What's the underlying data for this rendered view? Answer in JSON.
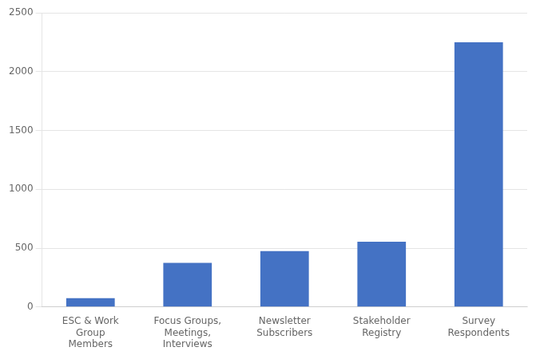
{
  "chart_data": {
    "type": "bar",
    "categories": [
      "ESC & Work\nGroup\nMembers",
      "Focus Groups,\nMeetings,\nInterviews",
      "Newsletter\nSubscribers",
      "Stakeholder\nRegistry",
      "Survey\nRespondents"
    ],
    "values": [
      75,
      375,
      475,
      555,
      2250
    ],
    "color": "#4472C4",
    "ylim": [
      0,
      2500
    ],
    "yticks": [
      0,
      500,
      1000,
      1500,
      2000,
      2500
    ],
    "grid": true
  }
}
